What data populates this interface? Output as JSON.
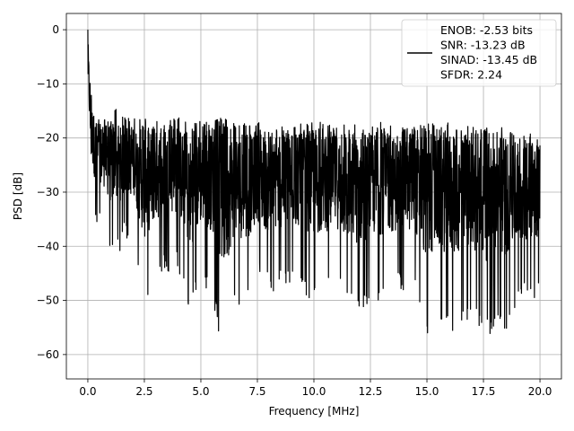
{
  "chart_data": {
    "type": "line",
    "title": "",
    "xlabel": "Frequency [MHz]",
    "ylabel": "PSD [dB]",
    "xlim": [
      -0.95,
      20.95
    ],
    "ylim": [
      -64.5,
      3.0
    ],
    "xticks": [
      0.0,
      2.5,
      5.0,
      7.5,
      10.0,
      12.5,
      15.0,
      17.5,
      20.0
    ],
    "xtick_labels": [
      "0.0",
      "2.5",
      "5.0",
      "7.5",
      "10.0",
      "12.5",
      "15.0",
      "17.5",
      "20.0"
    ],
    "yticks": [
      0,
      -10,
      -20,
      -30,
      -40,
      -50,
      -60
    ],
    "ytick_labels": [
      "0",
      "−10",
      "−20",
      "−30",
      "−40",
      "−50",
      "−60"
    ],
    "grid": true,
    "legend_position": "top-right",
    "line_color": "#000000",
    "legend_lines": [
      "ENOB: -2.53 bits",
      "SNR: -13.23 dB",
      "SINAD: -13.45 dB",
      "SFDR: 2.24"
    ],
    "series": [
      {
        "x": [
          0.0,
          0.05,
          0.1,
          0.15,
          0.2,
          0.3,
          0.4,
          0.5,
          0.7,
          1.0,
          1.3,
          1.6,
          2.0,
          2.5,
          3.0,
          3.5,
          4.0,
          4.5,
          5.0,
          5.5,
          6.0,
          6.5,
          7.0,
          7.5,
          8.0,
          8.5,
          9.0,
          9.5,
          10.0,
          10.5,
          11.0,
          11.5,
          12.0,
          12.5,
          13.0,
          13.5,
          14.0,
          14.5,
          15.0,
          15.5,
          16.0,
          16.5,
          17.0,
          17.5,
          18.0,
          18.5,
          19.0,
          19.5,
          20.0
        ],
        "upper": [
          0.0,
          -4.5,
          -8.5,
          -11.0,
          -13.0,
          -14.5,
          -15.5,
          -16.0,
          -16.5,
          -15.0,
          -14.5,
          -16.0,
          -16.5,
          -16.0,
          -16.5,
          -17.0,
          -16.0,
          -17.5,
          -16.5,
          -17.0,
          -16.0,
          -16.5,
          -17.5,
          -17.0,
          -18.5,
          -17.5,
          -18.0,
          -17.0,
          -16.5,
          -17.5,
          -17.0,
          -17.5,
          -17.0,
          -16.5,
          -17.0,
          -17.5,
          -18.0,
          -17.5,
          -17.0,
          -17.5,
          -17.0,
          -18.0,
          -17.5,
          -18.0,
          -18.5,
          -17.5,
          -20.0,
          -19.0,
          -20.5
        ],
        "lower": [
          -16.0,
          -20.0,
          -28.0,
          -34.0,
          -32.0,
          -35.0,
          -38.0,
          -35.0,
          -36.0,
          -42.0,
          -43.0,
          -39.0,
          -39.0,
          -52.0,
          -46.0,
          -45.0,
          -44.0,
          -54.0,
          -47.0,
          -49.0,
          -62.0,
          -50.0,
          -52.0,
          -46.0,
          -49.0,
          -48.0,
          -47.0,
          -48.0,
          -51.0,
          -49.0,
          -48.0,
          -52.0,
          -53.0,
          -51.0,
          -50.0,
          -49.0,
          -48.0,
          -50.0,
          -57.5,
          -54.0,
          -56.0,
          -55.0,
          -53.0,
          -58.0,
          -55.0,
          -56.0,
          -51.0,
          -50.0,
          -49.0
        ]
      }
    ]
  }
}
